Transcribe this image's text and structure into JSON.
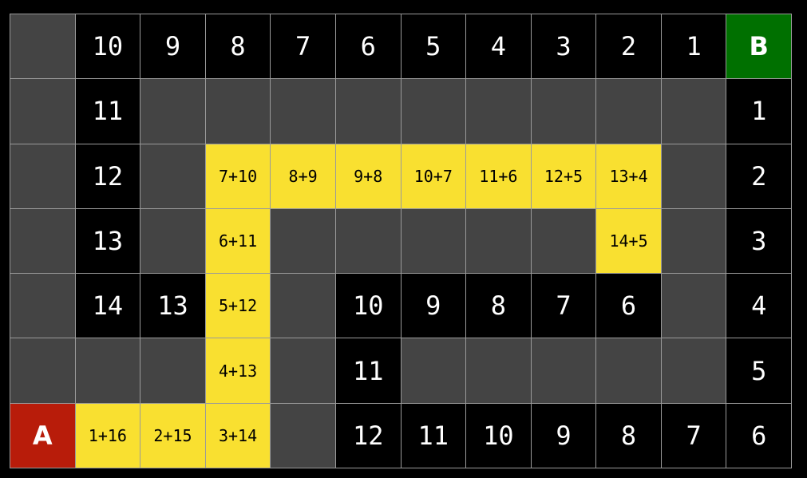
{
  "colors": {
    "wall": "#444444",
    "open": "#000000",
    "path": "#f9e030",
    "start": "#b81c0a",
    "goal": "#007000"
  },
  "grid": {
    "rows": [
      [
        {
          "t": "wall"
        },
        {
          "t": "num",
          "v": "10"
        },
        {
          "t": "num",
          "v": "9"
        },
        {
          "t": "num",
          "v": "8"
        },
        {
          "t": "num",
          "v": "7"
        },
        {
          "t": "num",
          "v": "6"
        },
        {
          "t": "num",
          "v": "5"
        },
        {
          "t": "num",
          "v": "4"
        },
        {
          "t": "num",
          "v": "3"
        },
        {
          "t": "num",
          "v": "2"
        },
        {
          "t": "num",
          "v": "1"
        },
        {
          "t": "goal",
          "v": "B"
        }
      ],
      [
        {
          "t": "wall"
        },
        {
          "t": "num",
          "v": "11"
        },
        {
          "t": "wall"
        },
        {
          "t": "wall"
        },
        {
          "t": "wall"
        },
        {
          "t": "wall"
        },
        {
          "t": "wall"
        },
        {
          "t": "wall"
        },
        {
          "t": "wall"
        },
        {
          "t": "wall"
        },
        {
          "t": "wall"
        },
        {
          "t": "num",
          "v": "1"
        }
      ],
      [
        {
          "t": "wall"
        },
        {
          "t": "num",
          "v": "12"
        },
        {
          "t": "wall"
        },
        {
          "t": "path",
          "v": "7+10"
        },
        {
          "t": "path",
          "v": "8+9"
        },
        {
          "t": "path",
          "v": "9+8"
        },
        {
          "t": "path",
          "v": "10+7"
        },
        {
          "t": "path",
          "v": "11+6"
        },
        {
          "t": "path",
          "v": "12+5"
        },
        {
          "t": "path",
          "v": "13+4"
        },
        {
          "t": "wall"
        },
        {
          "t": "num",
          "v": "2"
        }
      ],
      [
        {
          "t": "wall"
        },
        {
          "t": "num",
          "v": "13"
        },
        {
          "t": "wall"
        },
        {
          "t": "path",
          "v": "6+11"
        },
        {
          "t": "wall"
        },
        {
          "t": "wall"
        },
        {
          "t": "wall"
        },
        {
          "t": "wall"
        },
        {
          "t": "wall"
        },
        {
          "t": "path",
          "v": "14+5"
        },
        {
          "t": "wall"
        },
        {
          "t": "num",
          "v": "3"
        }
      ],
      [
        {
          "t": "wall"
        },
        {
          "t": "num",
          "v": "14"
        },
        {
          "t": "num",
          "v": "13"
        },
        {
          "t": "path",
          "v": "5+12"
        },
        {
          "t": "wall"
        },
        {
          "t": "num",
          "v": "10"
        },
        {
          "t": "num",
          "v": "9"
        },
        {
          "t": "num",
          "v": "8"
        },
        {
          "t": "num",
          "v": "7"
        },
        {
          "t": "num",
          "v": "6"
        },
        {
          "t": "wall"
        },
        {
          "t": "num",
          "v": "4"
        }
      ],
      [
        {
          "t": "wall"
        },
        {
          "t": "wall"
        },
        {
          "t": "wall"
        },
        {
          "t": "path",
          "v": "4+13"
        },
        {
          "t": "wall"
        },
        {
          "t": "num",
          "v": "11"
        },
        {
          "t": "wall"
        },
        {
          "t": "wall"
        },
        {
          "t": "wall"
        },
        {
          "t": "wall"
        },
        {
          "t": "wall"
        },
        {
          "t": "num",
          "v": "5"
        }
      ],
      [
        {
          "t": "start",
          "v": "A"
        },
        {
          "t": "path",
          "v": "1+16"
        },
        {
          "t": "path",
          "v": "2+15"
        },
        {
          "t": "path",
          "v": "3+14"
        },
        {
          "t": "wall"
        },
        {
          "t": "num",
          "v": "12"
        },
        {
          "t": "num",
          "v": "11"
        },
        {
          "t": "num",
          "v": "10"
        },
        {
          "t": "num",
          "v": "9"
        },
        {
          "t": "num",
          "v": "8"
        },
        {
          "t": "num",
          "v": "7"
        },
        {
          "t": "num",
          "v": "6"
        }
      ]
    ]
  }
}
